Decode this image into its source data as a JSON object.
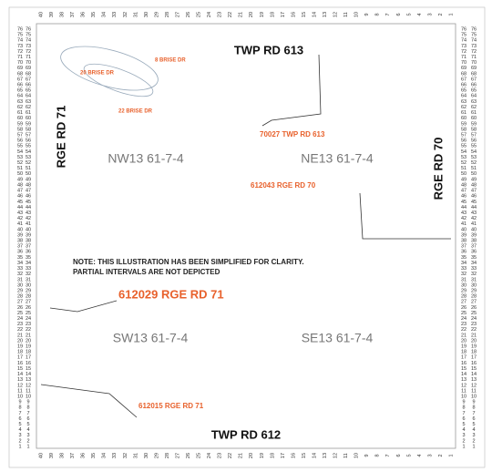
{
  "map": {
    "roads": {
      "north": "TWP RD 613",
      "south": "TWP RD 612",
      "west": "RGE RD 71",
      "east": "RGE RD 70"
    },
    "quarters": {
      "nw": "NW13 61-7-4",
      "ne": "NE13 61-7-4",
      "sw": "SW13 61-7-4",
      "se": "SE13 61-7-4"
    },
    "note": [
      "NOTE: THIS ILLUSTRATION HAS BEEN SIMPLIFIED FOR CLARITY.",
      "PARTIAL INTERVALS ARE NOT DEPICTED"
    ],
    "addresses": {
      "a1": "612029 RGE RD 71",
      "a2": "612015 RGE RD 71",
      "a3": "70027 TWP RD 613",
      "a4": "612043 RGE RD 70",
      "a5": "8 BRISE DR",
      "a6": "20 BRISE DR",
      "a7": "22 BRISE DR"
    },
    "edge_numbers": {
      "side": [
        76,
        75,
        74,
        73,
        72,
        71,
        70,
        69,
        68,
        67,
        66,
        65,
        64,
        63,
        62,
        61,
        60,
        59,
        58,
        57,
        56,
        55,
        54,
        53,
        52,
        51,
        50,
        49,
        48,
        47,
        46,
        45,
        44,
        43,
        42,
        41,
        40,
        39,
        38,
        37,
        36,
        35,
        34,
        33,
        32,
        31,
        30,
        29,
        28,
        27,
        26,
        25,
        24,
        23,
        22,
        21,
        20,
        19,
        18,
        17,
        16,
        15,
        14,
        13,
        12,
        11,
        10,
        9,
        8,
        7,
        6,
        5,
        4,
        3,
        2,
        1
      ],
      "top": [
        40,
        39,
        38,
        37,
        36,
        35,
        34,
        33,
        32,
        31,
        30,
        29,
        28,
        27,
        26,
        25,
        24,
        23,
        22,
        21,
        20,
        19,
        18,
        17,
        16,
        15,
        14,
        13,
        12,
        11,
        10,
        9,
        8,
        7,
        6,
        5,
        4,
        3,
        2,
        1
      ]
    }
  }
}
